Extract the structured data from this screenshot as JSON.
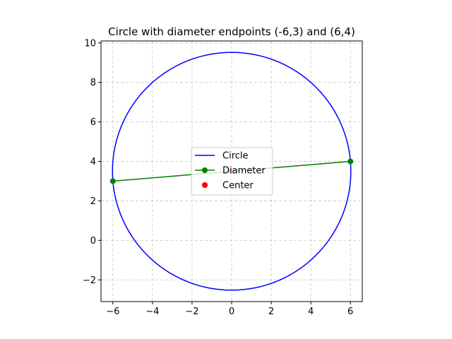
{
  "chart_data": {
    "type": "line",
    "title": "Circle with diameter endpoints (-6,3) and (6,4)",
    "xlabel": "",
    "ylabel": "",
    "xlim": [
      -6.6,
      6.6
    ],
    "ylim": [
      -3.1,
      10.1
    ],
    "xticks": [
      -6,
      -4,
      -2,
      0,
      2,
      4,
      6
    ],
    "yticks": [
      -2,
      0,
      2,
      4,
      6,
      8,
      10
    ],
    "xtick_labels": [
      "−6",
      "−4",
      "−2",
      "0",
      "2",
      "4",
      "6"
    ],
    "ytick_labels": [
      "−2",
      "0",
      "2",
      "4",
      "6",
      "8",
      "10"
    ],
    "grid": true,
    "legend_position": "center",
    "series": [
      {
        "name": "Circle",
        "kind": "circle",
        "center": [
          0,
          3.5
        ],
        "radius": 6.0208,
        "color": "#0000ff"
      },
      {
        "name": "Diameter",
        "kind": "line-markers",
        "points": [
          [
            -6,
            3
          ],
          [
            6,
            4
          ]
        ],
        "color": "#008000"
      },
      {
        "name": "Center",
        "kind": "point",
        "points": [
          [
            0,
            3.5
          ]
        ],
        "color": "#ff0000"
      }
    ]
  }
}
